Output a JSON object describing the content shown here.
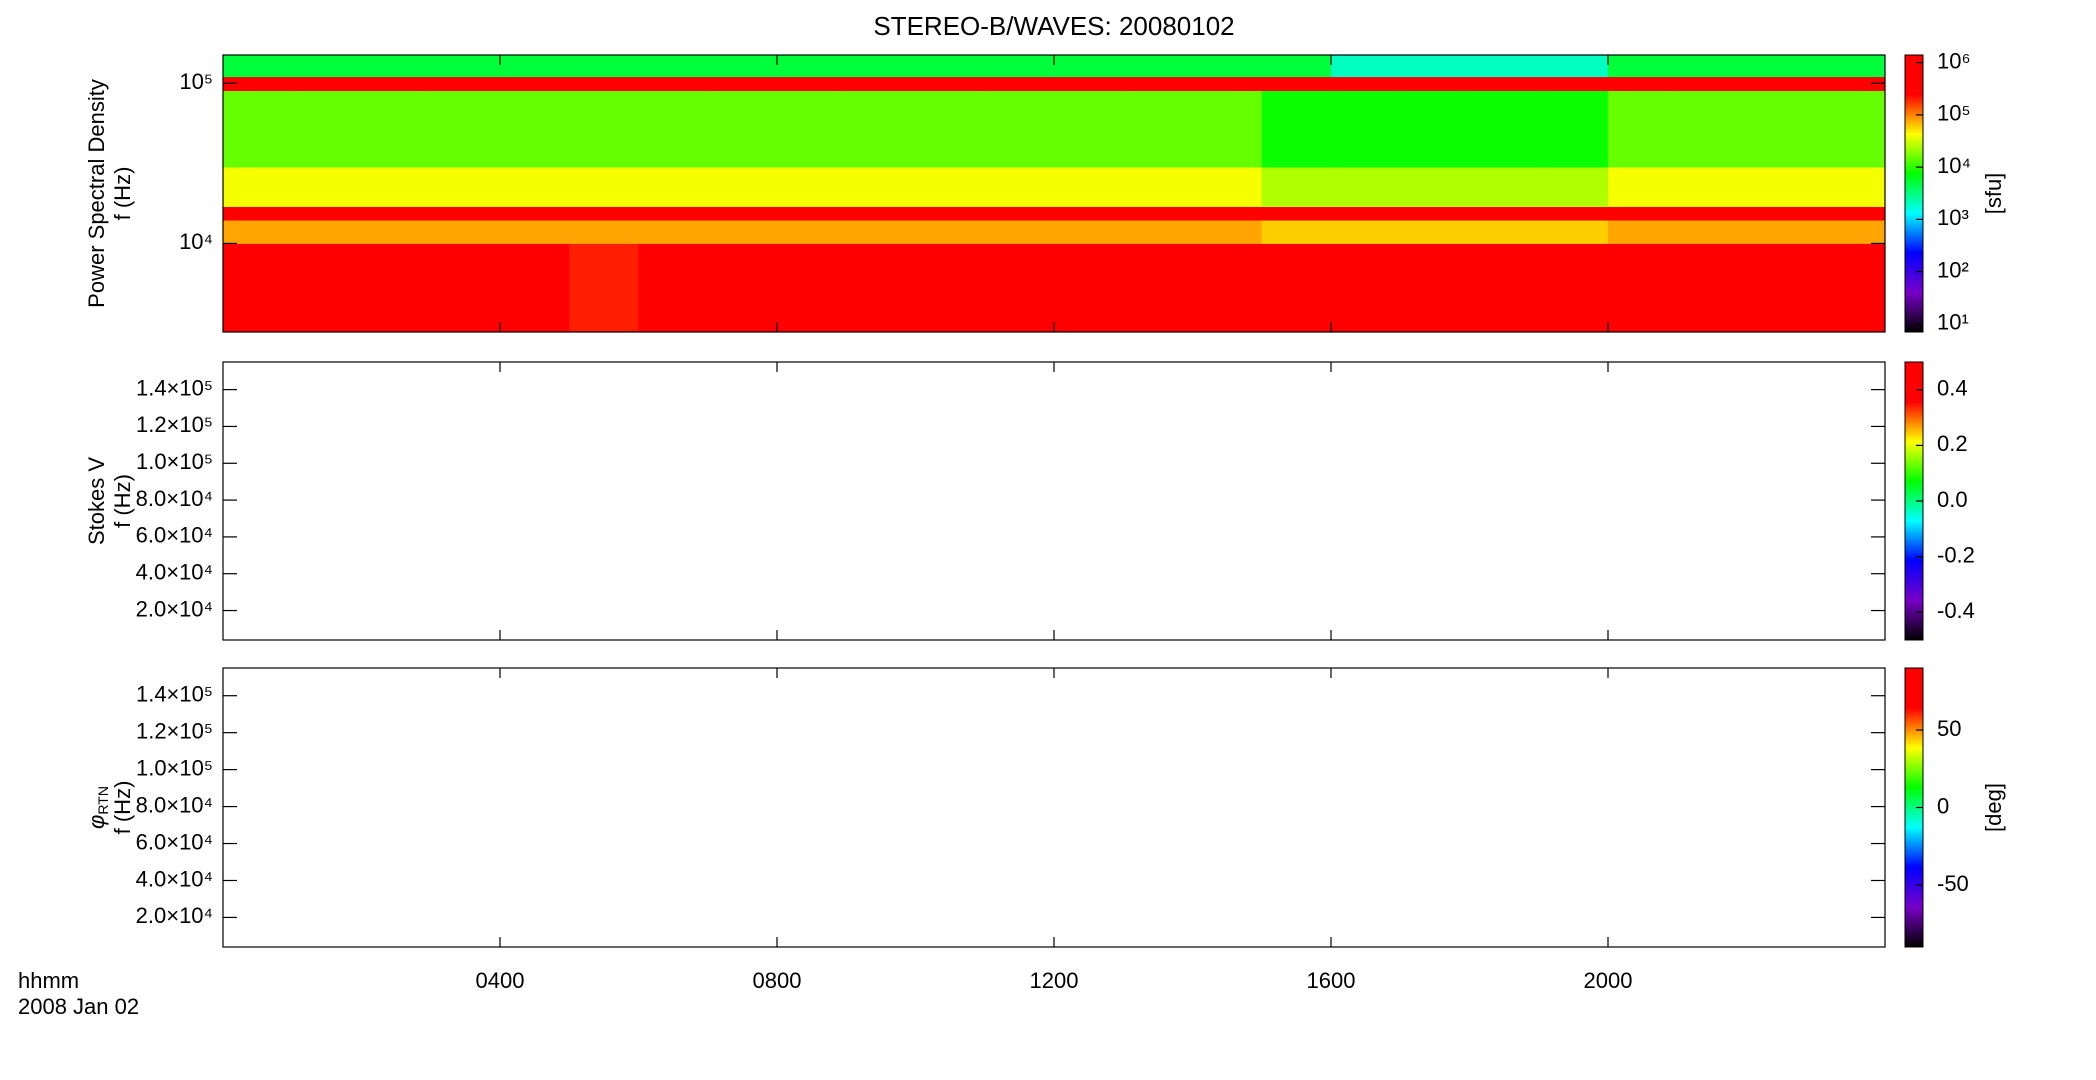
{
  "title": "STEREO-B/WAVES: 20080102",
  "x_axis": {
    "label": "hhmm",
    "date": "2008 Jan 02",
    "xlim": [
      0,
      24
    ],
    "xticks": [
      {
        "value": 4,
        "label": "0400"
      },
      {
        "value": 8,
        "label": "0800"
      },
      {
        "value": 12,
        "label": "1200"
      },
      {
        "value": 16,
        "label": "1600"
      },
      {
        "value": 20,
        "label": "2000"
      }
    ]
  },
  "colormap": [
    "#000000",
    "#7800c8",
    "#0000ff",
    "#00ffff",
    "#00ff00",
    "#ffff00",
    "#ff0000",
    "#ff0000"
  ],
  "chart_data": [
    {
      "type": "heatmap",
      "ylabel": [
        "Power Spectral Density",
        "f (Hz)"
      ],
      "log_y": true,
      "ylim": [
        2800,
        150000
      ],
      "yticks": [
        {
          "value": 10000,
          "label": "10⁴"
        },
        {
          "value": 100000,
          "label": "10⁵"
        }
      ],
      "x_bins": [
        0,
        1,
        2,
        3,
        4,
        5,
        6,
        7,
        8,
        9,
        10,
        11,
        12,
        13,
        14,
        15,
        16,
        17,
        18,
        19,
        20,
        21,
        22,
        23,
        24
      ],
      "y_bins": [
        2800,
        10000,
        14000,
        17000,
        30000,
        90000,
        110000,
        150000
      ],
      "z": [
        [
          400000,
          300000,
          300000,
          400000,
          300000,
          200000,
          300000,
          300000,
          500000,
          1000000,
          1000000,
          1000000,
          1000000,
          1000000,
          1000000,
          1000000,
          700000,
          700000,
          800000,
          1000000,
          1000000,
          1000000,
          600000,
          600000
        ],
        [
          80000,
          80000,
          80000,
          80000,
          80000,
          80000,
          80000,
          80000,
          80000,
          80000,
          80000,
          80000,
          80000,
          80000,
          80000,
          60000,
          60000,
          60000,
          60000,
          60000,
          80000,
          80000,
          80000,
          80000
        ],
        [
          1000000,
          1000000,
          1000000,
          1000000,
          1000000,
          1000000,
          1000000,
          1000000,
          1000000,
          1000000,
          1000000,
          1000000,
          1000000,
          1000000,
          1000000,
          1000000,
          1000000,
          1000000,
          1000000,
          1000000,
          1000000,
          1000000,
          1000000,
          1000000
        ],
        [
          40000,
          40000,
          40000,
          40000,
          40000,
          40000,
          40000,
          40000,
          40000,
          40000,
          40000,
          40000,
          40000,
          40000,
          40000,
          25000,
          25000,
          25000,
          25000,
          25000,
          40000,
          40000,
          40000,
          40000
        ],
        [
          15000,
          15000,
          15000,
          15000,
          15000,
          15000,
          15000,
          15000,
          15000,
          15000,
          15000,
          15000,
          15000,
          15000,
          15000,
          8000,
          8000,
          8000,
          8000,
          8000,
          15000,
          15000,
          15000,
          15000
        ],
        [
          500000,
          500000,
          500000,
          500000,
          500000,
          500000,
          500000,
          500000,
          500000,
          500000,
          500000,
          500000,
          500000,
          500000,
          500000,
          500000,
          500000,
          500000,
          500000,
          500000,
          500000,
          500000,
          500000,
          500000
        ],
        [
          5000,
          5000,
          5000,
          5000,
          5000,
          5000,
          5000,
          5000,
          5000,
          5000,
          5000,
          5000,
          5000,
          5000,
          5000,
          5000,
          2000,
          2000,
          2000,
          2000,
          5000,
          5000,
          5000,
          5000
        ]
      ],
      "colorbar": {
        "log": true,
        "lim": [
          7,
          1400000
        ],
        "label": "[sfu]",
        "ticks": [
          {
            "value": 10,
            "label": "10¹"
          },
          {
            "value": 100,
            "label": "10²"
          },
          {
            "value": 1000,
            "label": "10³"
          },
          {
            "value": 10000,
            "label": "10⁴"
          },
          {
            "value": 100000,
            "label": "10⁵"
          },
          {
            "value": 1000000,
            "label": "10⁶"
          }
        ]
      }
    },
    {
      "type": "heatmap",
      "ylabel": [
        "Stokes V",
        "f (Hz)"
      ],
      "log_y": false,
      "ylim": [
        4000,
        155000
      ],
      "yticks": [
        {
          "value": 20000,
          "label": "2.0×10⁴"
        },
        {
          "value": 40000,
          "label": "4.0×10⁴"
        },
        {
          "value": 60000,
          "label": "6.0×10⁴"
        },
        {
          "value": 80000,
          "label": "8.0×10⁴"
        },
        {
          "value": 100000,
          "label": "1.0×10⁵"
        },
        {
          "value": 120000,
          "label": "1.2×10⁵"
        },
        {
          "value": 140000,
          "label": "1.4×10⁵"
        }
      ],
      "colorbar": {
        "log": false,
        "lim": [
          -0.5,
          0.5
        ],
        "ticks": [
          -0.4,
          -0.2,
          {
            "value": 0,
            "label": "0.0"
          },
          0.2,
          0.4
        ]
      }
    },
    {
      "type": "heatmap",
      "ylabel_symbol": "φ",
      "ylabel_subscript": "RTN",
      "ylabel": [
        "f (Hz)"
      ],
      "log_y": false,
      "ylim": [
        4000,
        155000
      ],
      "yticks": [
        {
          "value": 20000,
          "label": "2.0×10⁴"
        },
        {
          "value": 40000,
          "label": "4.0×10⁴"
        },
        {
          "value": 60000,
          "label": "6.0×10⁴"
        },
        {
          "value": 80000,
          "label": "8.0×10⁴"
        },
        {
          "value": 100000,
          "label": "1.0×10⁵"
        },
        {
          "value": 120000,
          "label": "1.2×10⁵"
        },
        {
          "value": 140000,
          "label": "1.4×10⁵"
        }
      ],
      "colorbar": {
        "log": false,
        "lim": [
          -90,
          90
        ],
        "label": "[deg]",
        "ticks": [
          -50,
          0,
          50
        ]
      }
    }
  ]
}
